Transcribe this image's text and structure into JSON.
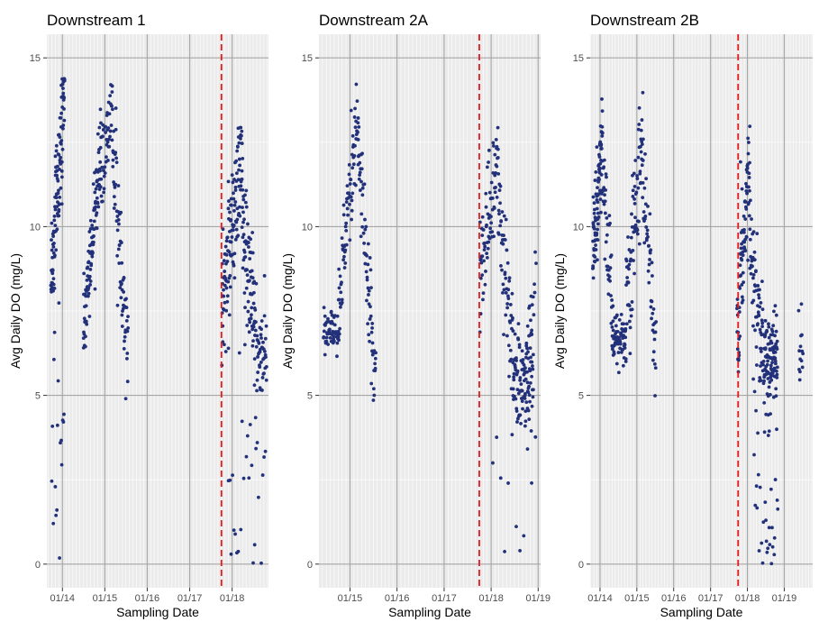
{
  "figure": {
    "ylabel": "Avg Daily DO (mg/L)",
    "xlabel": "Sampling Date",
    "point_color": "#22317a",
    "vline_color": "#e41a1c",
    "panel_bg": "#ebebeb",
    "grid_major_color": "#a6a6a6",
    "grid_minor_color": "#ffffff"
  },
  "chart_data": [
    {
      "type": "scatter",
      "title": "Downstream 1",
      "xlabel": "Sampling Date",
      "ylabel": "Avg Daily DO (mg/L)",
      "x_ticks": [
        "01/14",
        "01/15",
        "01/16",
        "01/17",
        "01/18"
      ],
      "xlim": [
        "2013-08-20",
        "2018-11-10"
      ],
      "ylim": [
        -0.7,
        15.7
      ],
      "y_ticks": [
        0,
        5,
        10,
        15
      ],
      "vline_date": "2017-10-01",
      "grid": true,
      "point_color": "#22317a",
      "clusters": [
        {
          "start": "2013-09-25",
          "end": "2014-01-20",
          "shape": "rise",
          "y0": 8.6,
          "y1": 13.9,
          "spread": 0.9,
          "n": 110
        },
        {
          "start": "2013-10-01",
          "end": "2014-01-15",
          "shape": "flat",
          "y0": 4.5,
          "y1": 0.2,
          "spread": 2.2,
          "n": 18
        },
        {
          "start": "2014-07-01",
          "end": "2014-11-30",
          "shape": "rise",
          "y0": 7.0,
          "y1": 12.3,
          "spread": 0.6,
          "n": 110
        },
        {
          "start": "2014-12-01",
          "end": "2015-03-10",
          "shape": "rise",
          "y0": 11.2,
          "y1": 13.9,
          "spread": 0.6,
          "n": 45
        },
        {
          "start": "2015-03-10",
          "end": "2015-07-20",
          "shape": "fall",
          "y0": 12.6,
          "y1": 5.9,
          "spread": 0.8,
          "n": 70
        },
        {
          "start": "2017-10-05",
          "end": "2018-03-25",
          "shape": "rise",
          "y0": 7.8,
          "y1": 11.8,
          "spread": 0.9,
          "n": 120
        },
        {
          "start": "2018-03-25",
          "end": "2018-07-15",
          "shape": "fall",
          "y0": 10.4,
          "y1": 7.2,
          "spread": 1.0,
          "n": 80
        },
        {
          "start": "2018-07-15",
          "end": "2018-10-25",
          "shape": "flat",
          "y0": 6.6,
          "y1": 6.0,
          "spread": 0.7,
          "n": 50
        },
        {
          "start": "2017-12-01",
          "end": "2018-10-15",
          "shape": "flat",
          "y0": 4.0,
          "y1": 0.4,
          "spread": 2.2,
          "n": 28
        }
      ]
    },
    {
      "type": "scatter",
      "title": "Downstream 2A",
      "xlabel": "Sampling Date",
      "ylabel": "Avg Daily DO (mg/L)",
      "x_ticks": [
        "01/15",
        "01/16",
        "01/17",
        "01/18",
        "01/19"
      ],
      "xlim": [
        "2014-05-05",
        "2019-01-20"
      ],
      "ylim": [
        -0.7,
        15.7
      ],
      "y_ticks": [
        0,
        5,
        10,
        15
      ],
      "vline_date": "2017-10-01",
      "grid": true,
      "point_color": "#22317a",
      "clusters": [
        {
          "start": "2014-06-10",
          "end": "2014-10-05",
          "shape": "flat",
          "y0": 7.0,
          "y1": 6.8,
          "spread": 0.3,
          "n": 60
        },
        {
          "start": "2014-10-05",
          "end": "2015-03-05",
          "shape": "rise",
          "y0": 7.6,
          "y1": 13.6,
          "spread": 0.7,
          "n": 80
        },
        {
          "start": "2015-03-05",
          "end": "2015-07-20",
          "shape": "fall",
          "y0": 12.0,
          "y1": 5.6,
          "spread": 0.8,
          "n": 70
        },
        {
          "start": "2017-10-05",
          "end": "2018-02-25",
          "shape": "rise",
          "y0": 8.5,
          "y1": 12.3,
          "spread": 0.9,
          "n": 75
        },
        {
          "start": "2018-02-25",
          "end": "2018-06-20",
          "shape": "fall",
          "y0": 10.5,
          "y1": 6.4,
          "spread": 0.9,
          "n": 60
        },
        {
          "start": "2018-06-20",
          "end": "2018-11-25",
          "shape": "flat",
          "y0": 5.7,
          "y1": 5.2,
          "spread": 0.7,
          "n": 100
        },
        {
          "start": "2018-09-20",
          "end": "2018-12-15",
          "shape": "rise",
          "y0": 5.8,
          "y1": 8.6,
          "spread": 0.4,
          "n": 20
        },
        {
          "start": "2018-01-15",
          "end": "2018-12-10",
          "shape": "flat",
          "y0": 3.2,
          "y1": 1.0,
          "spread": 1.3,
          "n": 12
        }
      ]
    },
    {
      "type": "scatter",
      "title": "Downstream 2B",
      "xlabel": "Sampling Date",
      "ylabel": "Avg Daily DO (mg/L)",
      "x_ticks": [
        "01/14",
        "01/15",
        "01/16",
        "01/17",
        "01/18",
        "01/19"
      ],
      "xlim": [
        "2013-09-25",
        "2019-10-10"
      ],
      "ylim": [
        -0.7,
        15.7
      ],
      "y_ticks": [
        0,
        5,
        10,
        15
      ],
      "vline_date": "2017-10-01",
      "grid": true,
      "point_color": "#22317a",
      "clusters": [
        {
          "start": "2013-10-20",
          "end": "2014-01-25",
          "shape": "rise",
          "y0": 9.2,
          "y1": 12.3,
          "spread": 0.7,
          "n": 90
        },
        {
          "start": "2014-01-25",
          "end": "2014-05-01",
          "shape": "fall",
          "y0": 11.5,
          "y1": 8.0,
          "spread": 0.9,
          "n": 40
        },
        {
          "start": "2014-05-01",
          "end": "2014-09-15",
          "shape": "flat",
          "y0": 6.8,
          "y1": 6.6,
          "spread": 0.35,
          "n": 75
        },
        {
          "start": "2014-09-15",
          "end": "2015-03-01",
          "shape": "rise",
          "y0": 7.2,
          "y1": 13.0,
          "spread": 1.0,
          "n": 80
        },
        {
          "start": "2015-03-01",
          "end": "2015-07-10",
          "shape": "fall",
          "y0": 11.8,
          "y1": 5.8,
          "spread": 0.8,
          "n": 50
        },
        {
          "start": "2017-09-20",
          "end": "2018-01-25",
          "shape": "rise",
          "y0": 7.0,
          "y1": 12.2,
          "spread": 1.0,
          "n": 80
        },
        {
          "start": "2018-01-25",
          "end": "2018-06-20",
          "shape": "fall",
          "y0": 9.8,
          "y1": 6.0,
          "spread": 0.9,
          "n": 70
        },
        {
          "start": "2018-06-20",
          "end": "2018-10-25",
          "shape": "flat",
          "y0": 6.2,
          "y1": 6.0,
          "spread": 0.7,
          "n": 90
        },
        {
          "start": "2018-03-01",
          "end": "2018-10-30",
          "shape": "flat",
          "y0": 3.8,
          "y1": 0.6,
          "spread": 1.9,
          "n": 40
        },
        {
          "start": "2019-05-25",
          "end": "2019-07-05",
          "shape": "flat",
          "y0": 6.9,
          "y1": 5.8,
          "spread": 1.0,
          "n": 14
        }
      ]
    }
  ]
}
